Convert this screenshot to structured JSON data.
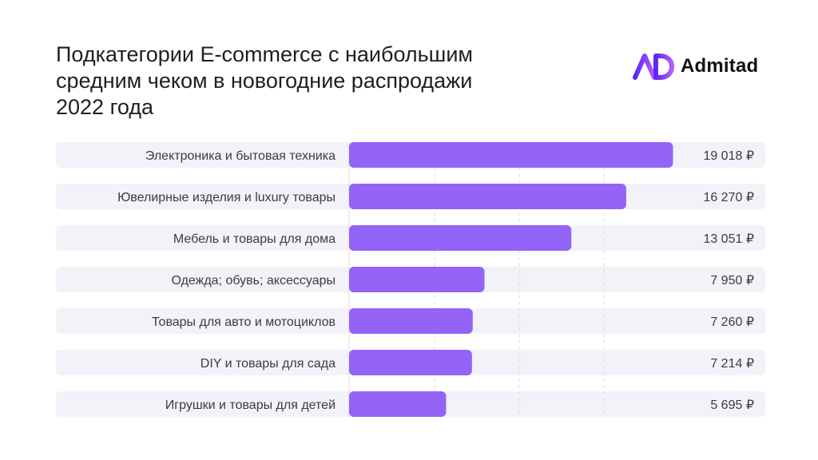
{
  "title_lines": [
    "Подкатегории E-commerce с наибольшим",
    "средним чеком в новогодние распродажи",
    "2022 года"
  ],
  "brand": {
    "name": "Admitad",
    "logo_icon": "admitad-logo-icon"
  },
  "colors": {
    "bar": "#9463f7",
    "row_background": "#f3f2f8",
    "gridline": "#dcdce3",
    "text": "#3c3c3c",
    "logo_gradient": [
      "#5f27f5",
      "#b25bf9"
    ]
  },
  "chart_data": {
    "type": "bar",
    "orientation": "horizontal",
    "categories": [
      "Электроника и бытовая техника",
      "Ювелирные изделия и luxury товары",
      "Мебель и товары для дома",
      "Одежда; обувь; аксессуары",
      "Товары для авто и мотоциклов",
      "DIY и товары для сада",
      "Игрушки и товары для детей"
    ],
    "values": [
      19018,
      16270,
      13051,
      7950,
      7260,
      7214,
      5695
    ],
    "value_labels": [
      "19 018 ₽",
      "16 270 ₽",
      "13 051 ₽",
      "7 950 ₽",
      "7 260 ₽",
      "7 214 ₽",
      "5 695 ₽"
    ],
    "title": "Подкатегории E-commerce с наибольшим средним чеком в новогодние распродажи 2022 года",
    "xlabel": "",
    "ylabel": "",
    "xlim": [
      0,
      20000
    ],
    "grid": true
  }
}
